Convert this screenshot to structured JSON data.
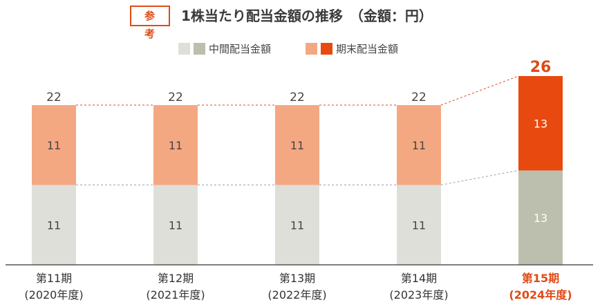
{
  "header": {
    "badge": "参 考",
    "title": "1株当たり配当金額の推移　（金額：円）"
  },
  "legend": {
    "interim_label": "中間配当金額",
    "yearend_label": "期末配当金額"
  },
  "colors": {
    "interim": "#dfdfd9",
    "yearend": "#f4a882",
    "interim_highlight": "#bcbfad",
    "yearend_highlight": "#e8490f",
    "accent": "#e04a16",
    "axis": "#555555"
  },
  "chart_data": {
    "type": "bar",
    "stacked": true,
    "categories": [
      [
        "第11期",
        "(2020年度)"
      ],
      [
        "第12期",
        "(2021年度)"
      ],
      [
        "第13期",
        "(2022年度)"
      ],
      [
        "第14期",
        "(2023年度)"
      ],
      [
        "第15期",
        "(2024年度)"
      ]
    ],
    "series": [
      {
        "name": "中間配当金額",
        "values": [
          11,
          11,
          11,
          11,
          13
        ]
      },
      {
        "name": "期末配当金額",
        "values": [
          11,
          11,
          11,
          11,
          13
        ]
      }
    ],
    "totals": [
      22,
      22,
      22,
      22,
      26
    ],
    "highlight_index": 4,
    "ylim": [
      0,
      26
    ],
    "xlabel": "",
    "ylabel": ""
  }
}
